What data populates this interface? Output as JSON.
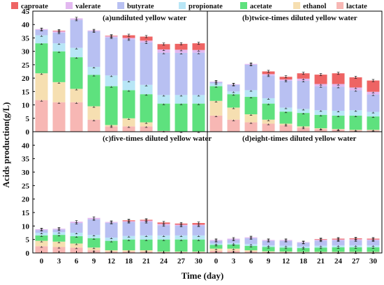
{
  "chart_data": {
    "type": "bar",
    "stacked": true,
    "layout": "2x2 panels sharing axes",
    "xlabel": "Time (day)",
    "ylabel": "Acids production(g/L)",
    "ylim": [
      0,
      45
    ],
    "yticks": [
      0,
      5,
      10,
      15,
      20,
      25,
      30,
      35,
      40,
      45
    ],
    "categories": [
      "0",
      "3",
      "6",
      "9",
      "12",
      "18",
      "21",
      "24",
      "27",
      "30"
    ],
    "legend": {
      "placement": "top",
      "entries": [
        "caproate",
        "valerate",
        "butyrate",
        "propionate",
        "acetate",
        "ethanol",
        "lactate"
      ]
    },
    "stack_order_bottom_to_top": [
      "lactate",
      "ethanol",
      "acetate",
      "propionate",
      "butyrate",
      "valerate",
      "caproate"
    ],
    "colors": {
      "caproate": "#ee6464",
      "valerate": "#e2b8f0",
      "butyrate": "#b8c0f2",
      "propionate": "#b8e6f6",
      "acetate": "#5ee17e",
      "ethanol": "#f6dfb1",
      "lactate": "#f7b7b4"
    },
    "error_bars": true,
    "panels": [
      {
        "title": "(a)undiluted yellow water",
        "series": [
          {
            "name": "lactate",
            "values": [
              11.8,
              11.0,
              11.0,
              4.5,
              2.0,
              2.0,
              2.0,
              0.3,
              0.1,
              0.1
            ]
          },
          {
            "name": "ethanol",
            "values": [
              10.0,
              7.5,
              5.0,
              5.0,
              0.5,
              3.0,
              1.5,
              0.0,
              0.0,
              0.0
            ]
          },
          {
            "name": "acetate",
            "values": [
              11.2,
              11.5,
              11.8,
              11.7,
              14.5,
              10.5,
              10.5,
              10.2,
              10.4,
              10.4
            ]
          },
          {
            "name": "propionate",
            "values": [
              3.0,
              3.0,
              3.5,
              3.0,
              4.0,
              3.5,
              3.5,
              3.2,
              3.2,
              3.2
            ]
          },
          {
            "name": "butyrate",
            "values": [
              2.0,
              4.0,
              10.5,
              13.3,
              14.2,
              15.5,
              15.8,
              15.8,
              15.7,
              15.8
            ]
          },
          {
            "name": "valerate",
            "values": [
              0.3,
              0.5,
              0.5,
              0.3,
              0.4,
              0.5,
              0.7,
              1.2,
              1.2,
              1.0
            ]
          },
          {
            "name": "caproate",
            "values": [
              0.0,
              0.2,
              0.0,
              0.0,
              0.2,
              1.0,
              1.5,
              2.0,
              2.2,
              2.5
            ]
          }
        ]
      },
      {
        "title": "(b)twice-times diluted yellow water",
        "series": [
          {
            "name": "lactate",
            "values": [
              6.0,
              4.5,
              3.5,
              3.0,
              2.5,
              1.5,
              1.0,
              0.8,
              0.5,
              0.5
            ]
          },
          {
            "name": "ethanol",
            "values": [
              5.5,
              4.5,
              3.0,
              1.5,
              0.5,
              0.5,
              0.3,
              0.2,
              0.2,
              0.2
            ]
          },
          {
            "name": "acetate",
            "values": [
              5.5,
              5.0,
              6.5,
              6.0,
              4.5,
              5.0,
              5.0,
              5.0,
              5.3,
              5.0
            ]
          },
          {
            "name": "propionate",
            "values": [
              1.0,
              1.0,
              2.5,
              2.0,
              1.5,
              1.5,
              1.7,
              1.8,
              2.0,
              1.7
            ]
          },
          {
            "name": "butyrate",
            "values": [
              0.5,
              2.5,
              9.5,
              8.5,
              10.0,
              10.5,
              9.0,
              9.0,
              7.5,
              6.5
            ]
          },
          {
            "name": "valerate",
            "values": [
              0.2,
              0.2,
              0.3,
              0.5,
              0.5,
              0.8,
              0.8,
              1.0,
              1.0,
              1.0
            ]
          },
          {
            "name": "caproate",
            "values": [
              0.0,
              0.0,
              0.0,
              1.0,
              1.0,
              2.0,
              3.5,
              4.0,
              3.8,
              4.2
            ]
          }
        ]
      },
      {
        "title": "(c)five-times diluted yellow water",
        "series": [
          {
            "name": "lactate",
            "values": [
              2.5,
              2.2,
              2.0,
              1.0,
              0.5,
              0.5,
              0.5,
              0.3,
              0.3,
              0.3
            ]
          },
          {
            "name": "ethanol",
            "values": [
              2.0,
              2.0,
              1.5,
              1.0,
              0.5,
              0.5,
              0.5,
              0.2,
              0.2,
              0.2
            ]
          },
          {
            "name": "acetate",
            "values": [
              2.0,
              2.5,
              2.7,
              3.5,
              3.5,
              4.0,
              4.0,
              4.5,
              4.5,
              4.5
            ]
          },
          {
            "name": "propionate",
            "values": [
              1.0,
              1.0,
              1.3,
              1.2,
              1.2,
              1.3,
              1.5,
              1.5,
              1.5,
              1.5
            ]
          },
          {
            "name": "butyrate",
            "values": [
              1.0,
              1.0,
              3.6,
              5.8,
              5.5,
              5.2,
              5.0,
              3.8,
              3.6,
              3.7
            ]
          },
          {
            "name": "valerate",
            "values": [
              0.3,
              0.3,
              0.5,
              0.5,
              0.3,
              0.3,
              0.5,
              0.5,
              0.4,
              0.3
            ]
          },
          {
            "name": "caproate",
            "values": [
              0.0,
              0.0,
              0.0,
              0.0,
              0.0,
              0.3,
              0.3,
              0.5,
              0.4,
              0.6
            ]
          }
        ]
      },
      {
        "title": "(d)eight-times diluted yellow water",
        "series": [
          {
            "name": "lactate",
            "values": [
              0.8,
              0.8,
              0.5,
              0.3,
              0.3,
              0.2,
              0.2,
              0.2,
              0.2,
              0.2
            ]
          },
          {
            "name": "ethanol",
            "values": [
              0.8,
              0.8,
              0.5,
              0.3,
              0.2,
              0.2,
              0.2,
              0.2,
              0.2,
              0.2
            ]
          },
          {
            "name": "acetate",
            "values": [
              1.4,
              1.5,
              1.6,
              1.6,
              1.5,
              1.4,
              1.6,
              1.7,
              1.7,
              1.7
            ]
          },
          {
            "name": "propionate",
            "values": [
              0.5,
              0.6,
              0.7,
              0.6,
              0.7,
              0.6,
              0.7,
              0.7,
              0.7,
              0.7
            ]
          },
          {
            "name": "butyrate",
            "values": [
              1.0,
              1.2,
              2.2,
              1.7,
              1.8,
              1.4,
              1.9,
              1.9,
              1.9,
              1.9
            ]
          },
          {
            "name": "valerate",
            "values": [
              0.3,
              0.4,
              0.3,
              0.3,
              0.3,
              0.2,
              0.3,
              0.3,
              0.4,
              0.3
            ]
          },
          {
            "name": "caproate",
            "values": [
              0.0,
              0.0,
              0.0,
              0.0,
              0.0,
              0.0,
              0.2,
              0.3,
              0.3,
              0.3
            ]
          }
        ]
      }
    ]
  }
}
